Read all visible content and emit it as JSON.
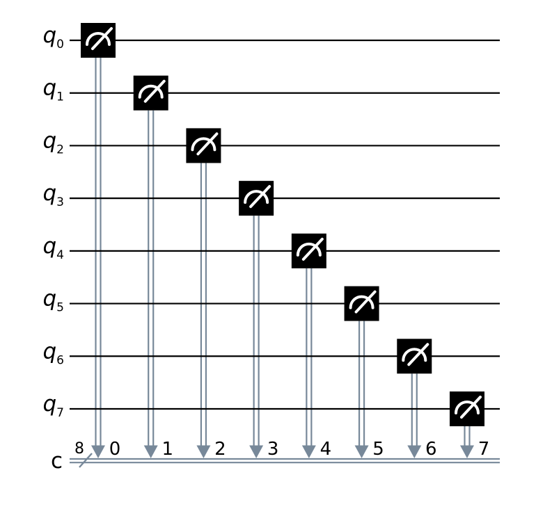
{
  "diagram": {
    "kind": "quantum-circuit-measurement-diagram",
    "style": {
      "background": "#ffffff",
      "qubit_wire_color": "#000000",
      "gate_fill": "#000000",
      "gate_icon_color": "#ffffff",
      "classical_color": "#778899",
      "label_color": "#000000"
    },
    "qubits": [
      {
        "name": "q",
        "sub": "0"
      },
      {
        "name": "q",
        "sub": "1"
      },
      {
        "name": "q",
        "sub": "2"
      },
      {
        "name": "q",
        "sub": "3"
      },
      {
        "name": "q",
        "sub": "4"
      },
      {
        "name": "q",
        "sub": "5"
      },
      {
        "name": "q",
        "sub": "6"
      },
      {
        "name": "q",
        "sub": "7"
      }
    ],
    "classical_register": {
      "name": "c",
      "size": "8"
    },
    "measurements": [
      {
        "qubit": 0,
        "target_clbit": "0"
      },
      {
        "qubit": 1,
        "target_clbit": "1"
      },
      {
        "qubit": 2,
        "target_clbit": "2"
      },
      {
        "qubit": 3,
        "target_clbit": "3"
      },
      {
        "qubit": 4,
        "target_clbit": "4"
      },
      {
        "qubit": 5,
        "target_clbit": "5"
      },
      {
        "qubit": 6,
        "target_clbit": "6"
      },
      {
        "qubit": 7,
        "target_clbit": "7"
      }
    ]
  }
}
